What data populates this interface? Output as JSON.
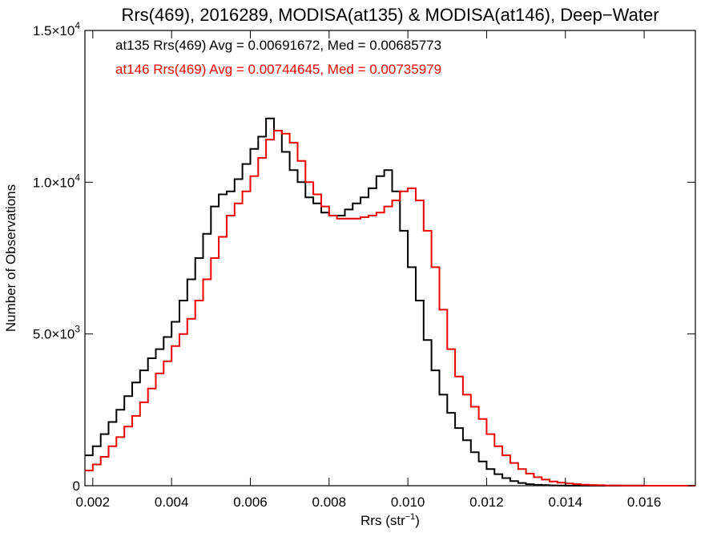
{
  "chart_data": {
    "type": "line",
    "title": "Rrs(469), 2016289, MODISA(at135) & MODISA(at146), Deep−Water",
    "xlabel": "Rrs (str",
    "xlabel_sup": "−1",
    "xlabel_suffix": ")",
    "ylabel": "Number of Observations",
    "xlim": [
      0.0018,
      0.0173
    ],
    "ylim": [
      0,
      15000
    ],
    "x_ticks": [
      {
        "value": 0.002,
        "label": "0.002"
      },
      {
        "value": 0.004,
        "label": "0.004"
      },
      {
        "value": 0.006,
        "label": "0.006"
      },
      {
        "value": 0.008,
        "label": "0.008"
      },
      {
        "value": 0.01,
        "label": "0.010"
      },
      {
        "value": 0.012,
        "label": "0.012"
      },
      {
        "value": 0.014,
        "label": "0.014"
      },
      {
        "value": 0.016,
        "label": "0.016"
      }
    ],
    "y_ticks": [
      {
        "value": 0,
        "base": "0",
        "exp": ""
      },
      {
        "value": 5000,
        "base": "5.0×10",
        "exp": "3"
      },
      {
        "value": 10000,
        "base": "1.0×10",
        "exp": "4"
      },
      {
        "value": 15000,
        "base": "1.5×10",
        "exp": "4"
      }
    ],
    "annotations": [
      "at135 Rrs(469) Avg = 0.00691672, Med = 0.00685773",
      "at146 Rrs(469) Avg = 0.00744645, Med = 0.00735979"
    ],
    "series": [
      {
        "color": "#000000",
        "step": "histogram",
        "points": [
          [
            0.0018,
            1000
          ],
          [
            0.002,
            1300
          ],
          [
            0.0022,
            1700
          ],
          [
            0.0024,
            2100
          ],
          [
            0.0026,
            2500
          ],
          [
            0.0028,
            2950
          ],
          [
            0.003,
            3400
          ],
          [
            0.0032,
            3800
          ],
          [
            0.0034,
            4200
          ],
          [
            0.0036,
            4500
          ],
          [
            0.0038,
            4900
          ],
          [
            0.004,
            5400
          ],
          [
            0.0042,
            6100
          ],
          [
            0.0044,
            6800
          ],
          [
            0.0046,
            7500
          ],
          [
            0.0048,
            8300
          ],
          [
            0.005,
            9200
          ],
          [
            0.0052,
            9600
          ],
          [
            0.0054,
            9700
          ],
          [
            0.0056,
            10100
          ],
          [
            0.0058,
            10600
          ],
          [
            0.006,
            11100
          ],
          [
            0.0062,
            11500
          ],
          [
            0.0064,
            12100
          ],
          [
            0.0066,
            11700
          ],
          [
            0.0068,
            11000
          ],
          [
            0.007,
            10400
          ],
          [
            0.0072,
            10000
          ],
          [
            0.0074,
            9500
          ],
          [
            0.0076,
            9300
          ],
          [
            0.0078,
            9000
          ],
          [
            0.008,
            8900
          ],
          [
            0.0082,
            8900
          ],
          [
            0.0084,
            9100
          ],
          [
            0.0086,
            9300
          ],
          [
            0.0088,
            9500
          ],
          [
            0.009,
            9800
          ],
          [
            0.0092,
            10200
          ],
          [
            0.0094,
            10400
          ],
          [
            0.0096,
            9700
          ],
          [
            0.0098,
            8400
          ],
          [
            0.01,
            7200
          ],
          [
            0.0102,
            6100
          ],
          [
            0.0104,
            4800
          ],
          [
            0.0106,
            3800
          ],
          [
            0.0108,
            3000
          ],
          [
            0.011,
            2400
          ],
          [
            0.0112,
            1900
          ],
          [
            0.0114,
            1500
          ],
          [
            0.0116,
            1100
          ],
          [
            0.0118,
            800
          ],
          [
            0.012,
            550
          ],
          [
            0.0122,
            380
          ],
          [
            0.0124,
            250
          ],
          [
            0.0126,
            150
          ],
          [
            0.0128,
            90
          ],
          [
            0.013,
            50
          ],
          [
            0.0132,
            30
          ],
          [
            0.0134,
            20
          ],
          [
            0.0136,
            10
          ],
          [
            0.0138,
            5
          ],
          [
            0.014,
            0
          ],
          [
            0.015,
            0
          ],
          [
            0.016,
            0
          ],
          [
            0.0173,
            0
          ]
        ]
      },
      {
        "color": "#ee0000",
        "step": "histogram",
        "points": [
          [
            0.0018,
            500
          ],
          [
            0.002,
            700
          ],
          [
            0.0022,
            950
          ],
          [
            0.0024,
            1300
          ],
          [
            0.0026,
            1600
          ],
          [
            0.0028,
            1950
          ],
          [
            0.003,
            2300
          ],
          [
            0.0032,
            2750
          ],
          [
            0.0034,
            3200
          ],
          [
            0.0036,
            3700
          ],
          [
            0.0038,
            4100
          ],
          [
            0.004,
            4600
          ],
          [
            0.0042,
            5000
          ],
          [
            0.0044,
            5500
          ],
          [
            0.0046,
            6100
          ],
          [
            0.0048,
            6800
          ],
          [
            0.005,
            7500
          ],
          [
            0.0052,
            8200
          ],
          [
            0.0054,
            8900
          ],
          [
            0.0056,
            9300
          ],
          [
            0.0058,
            9700
          ],
          [
            0.006,
            10200
          ],
          [
            0.0062,
            10800
          ],
          [
            0.0064,
            11400
          ],
          [
            0.0066,
            11700
          ],
          [
            0.0068,
            11600
          ],
          [
            0.007,
            11300
          ],
          [
            0.0072,
            10700
          ],
          [
            0.0074,
            10000
          ],
          [
            0.0076,
            9600
          ],
          [
            0.0078,
            9200
          ],
          [
            0.008,
            8900
          ],
          [
            0.0082,
            8800
          ],
          [
            0.0084,
            8800
          ],
          [
            0.0086,
            8800
          ],
          [
            0.0088,
            8850
          ],
          [
            0.009,
            8900
          ],
          [
            0.0092,
            9000
          ],
          [
            0.0094,
            9200
          ],
          [
            0.0096,
            9400
          ],
          [
            0.0098,
            9700
          ],
          [
            0.01,
            9800
          ],
          [
            0.0102,
            9400
          ],
          [
            0.0104,
            8400
          ],
          [
            0.0106,
            7200
          ],
          [
            0.0108,
            5800
          ],
          [
            0.011,
            4500
          ],
          [
            0.0112,
            3600
          ],
          [
            0.0114,
            3000
          ],
          [
            0.0116,
            2600
          ],
          [
            0.0118,
            2200
          ],
          [
            0.012,
            1700
          ],
          [
            0.0122,
            1300
          ],
          [
            0.0124,
            1000
          ],
          [
            0.0126,
            750
          ],
          [
            0.0128,
            550
          ],
          [
            0.013,
            400
          ],
          [
            0.0132,
            280
          ],
          [
            0.0134,
            200
          ],
          [
            0.0136,
            140
          ],
          [
            0.0138,
            100
          ],
          [
            0.014,
            70
          ],
          [
            0.0142,
            50
          ],
          [
            0.0144,
            35
          ],
          [
            0.0146,
            25
          ],
          [
            0.0148,
            15
          ],
          [
            0.015,
            10
          ],
          [
            0.0154,
            5
          ],
          [
            0.016,
            0
          ],
          [
            0.0173,
            0
          ]
        ]
      }
    ]
  }
}
